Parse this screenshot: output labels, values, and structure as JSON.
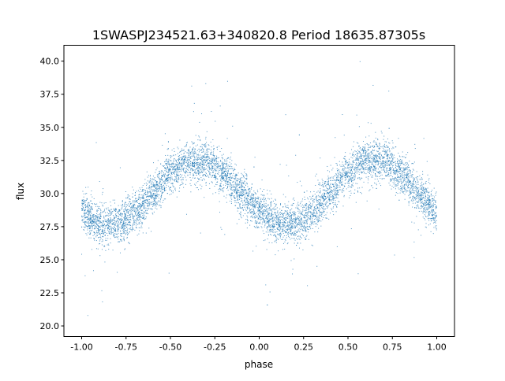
{
  "chart_data": {
    "type": "scatter",
    "title": "1SWASPJ234521.63+340820.8 Period 18635.87305s",
    "xlabel": "phase",
    "ylabel": "flux",
    "xlim": [
      -1.1,
      1.1
    ],
    "ylim": [
      19.2,
      41.2
    ],
    "xticks": [
      "-1.00",
      "-0.75",
      "-0.50",
      "-0.25",
      "0.00",
      "0.25",
      "0.50",
      "0.75",
      "1.00"
    ],
    "yticks": [
      "20.0",
      "22.5",
      "25.0",
      "27.5",
      "30.0",
      "32.5",
      "35.0",
      "37.5",
      "40.0"
    ],
    "grid": false,
    "marker_color": "#1f77b4",
    "trend": {
      "phase": [
        -1.0,
        -0.9,
        -0.8,
        -0.7,
        -0.6,
        -0.5,
        -0.4,
        -0.3,
        -0.2,
        -0.1,
        0.0,
        0.1,
        0.2,
        0.3,
        0.4,
        0.5,
        0.6,
        0.7,
        0.8,
        0.9,
        1.0
      ],
      "flux": [
        28.6,
        27.7,
        27.7,
        28.6,
        30.05,
        31.5,
        32.4,
        32.4,
        31.5,
        30.05,
        28.6,
        27.7,
        27.7,
        28.6,
        30.05,
        31.5,
        32.4,
        32.4,
        31.5,
        30.05,
        28.6
      ]
    },
    "scatter_sd": 0.75
  }
}
